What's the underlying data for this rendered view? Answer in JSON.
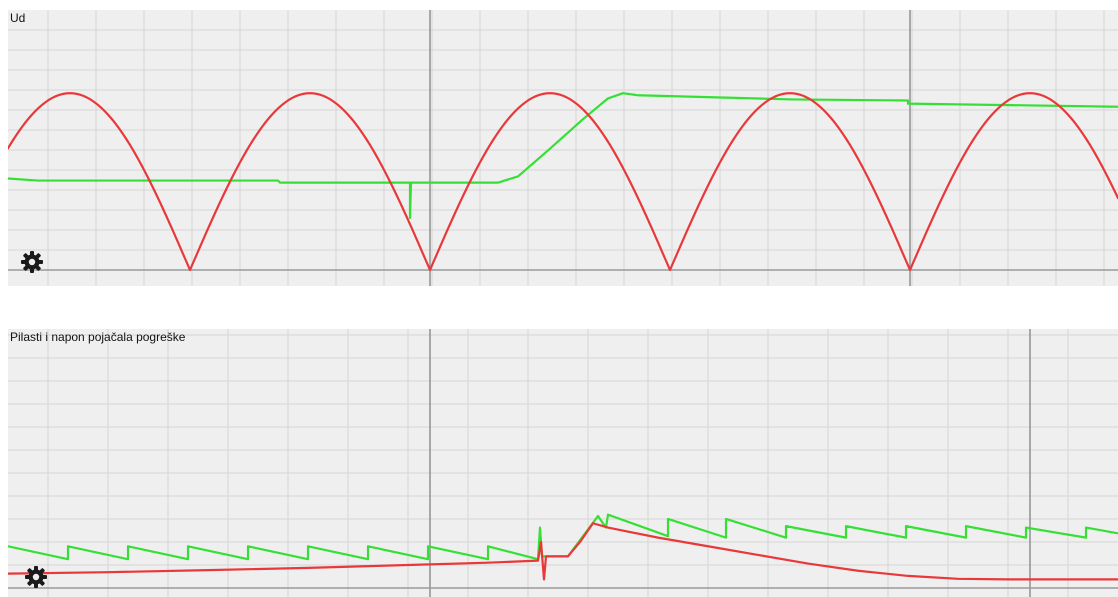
{
  "scopes": [
    {
      "title": "Ud",
      "settings_icon": "gear-icon",
      "chart_data": {
        "type": "line",
        "title": "Ud",
        "xlabel": "",
        "ylabel": "",
        "grid": true,
        "xlim": [
          0,
          1110
        ],
        "ylim": [
          0,
          5
        ],
        "series": [
          {
            "color": "#e8383a",
            "kind": "rectified_sine",
            "amplitude": 3.4,
            "period": 480,
            "phase_zero_x": 182,
            "points": [
              [
                0,
                2.28
              ],
              [
                60,
                3.4
              ],
              [
                182,
                0
              ],
              [
                302,
                3.4
              ],
              [
                422,
                0
              ],
              [
                542,
                3.4
              ],
              [
                662,
                0
              ],
              [
                782,
                3.4
              ],
              [
                902,
                0
              ],
              [
                1022,
                3.4
              ],
              [
                1110,
                1.31
              ]
            ]
          },
          {
            "color": "#35e035",
            "kind": "polyline",
            "points": [
              [
                0,
                1.76
              ],
              [
                30,
                1.72
              ],
              [
                270,
                1.72
              ],
              [
                272,
                1.68
              ],
              [
                402,
                1.68
              ],
              [
                402,
                1.0
              ],
              [
                403,
                1.68
              ],
              [
                490,
                1.68
              ],
              [
                510,
                1.8
              ],
              [
                540,
                2.3
              ],
              [
                575,
                2.9
              ],
              [
                600,
                3.3
              ],
              [
                615,
                3.4
              ],
              [
                630,
                3.36
              ],
              [
                785,
                3.28
              ],
              [
                900,
                3.26
              ],
              [
                900,
                3.2
              ],
              [
                1110,
                3.14
              ]
            ]
          }
        ]
      }
    },
    {
      "title": "Pilasti i napon pojačala pogreške",
      "settings_icon": "gear-icon",
      "chart_data": {
        "type": "line",
        "title": "Pilasti i napon pojačala pogreške",
        "xlabel": "",
        "ylabel": "",
        "grid": true,
        "xlim": [
          0,
          1110
        ],
        "ylim": [
          0,
          9
        ],
        "series": [
          {
            "color": "#35e035",
            "kind": "sawtooth",
            "points": [
              [
                0,
                1.45
              ],
              [
                60,
                1.0
              ],
              [
                60,
                1.45
              ],
              [
                120,
                1.0
              ],
              [
                120,
                1.45
              ],
              [
                180,
                1.0
              ],
              [
                180,
                1.45
              ],
              [
                240,
                1.0
              ],
              [
                240,
                1.45
              ],
              [
                300,
                1.0
              ],
              [
                300,
                1.45
              ],
              [
                360,
                1.0
              ],
              [
                360,
                1.45
              ],
              [
                420,
                1.0
              ],
              [
                420,
                1.45
              ],
              [
                480,
                1.0
              ],
              [
                480,
                1.45
              ],
              [
                530,
                1.0
              ],
              [
                532,
                2.1
              ],
              [
                534,
                1.1
              ],
              [
                560,
                1.1
              ],
              [
                575,
                1.8
              ],
              [
                590,
                2.5
              ],
              [
                598,
                2.1
              ],
              [
                600,
                2.55
              ],
              [
                660,
                1.8
              ],
              [
                660,
                2.4
              ],
              [
                718,
                1.75
              ],
              [
                718,
                2.4
              ],
              [
                778,
                1.75
              ],
              [
                778,
                2.15
              ],
              [
                838,
                1.75
              ],
              [
                838,
                2.15
              ],
              [
                898,
                1.75
              ],
              [
                898,
                2.15
              ],
              [
                958,
                1.75
              ],
              [
                958,
                2.15
              ],
              [
                1018,
                1.75
              ],
              [
                1018,
                2.1
              ],
              [
                1078,
                1.75
              ],
              [
                1078,
                2.1
              ],
              [
                1110,
                1.9
              ]
            ]
          },
          {
            "color": "#e8383a",
            "kind": "polyline",
            "points": [
              [
                0,
                0.5
              ],
              [
                100,
                0.55
              ],
              [
                200,
                0.62
              ],
              [
                300,
                0.7
              ],
              [
                400,
                0.8
              ],
              [
                480,
                0.88
              ],
              [
                530,
                0.95
              ],
              [
                533,
                1.6
              ],
              [
                536,
                0.3
              ],
              [
                538,
                1.1
              ],
              [
                560,
                1.1
              ],
              [
                572,
                1.6
              ],
              [
                585,
                2.25
              ],
              [
                600,
                2.1
              ],
              [
                650,
                1.75
              ],
              [
                700,
                1.45
              ],
              [
                750,
                1.15
              ],
              [
                800,
                0.85
              ],
              [
                850,
                0.6
              ],
              [
                900,
                0.42
              ],
              [
                950,
                0.32
              ],
              [
                1000,
                0.3
              ],
              [
                1110,
                0.3
              ]
            ]
          }
        ]
      }
    }
  ]
}
